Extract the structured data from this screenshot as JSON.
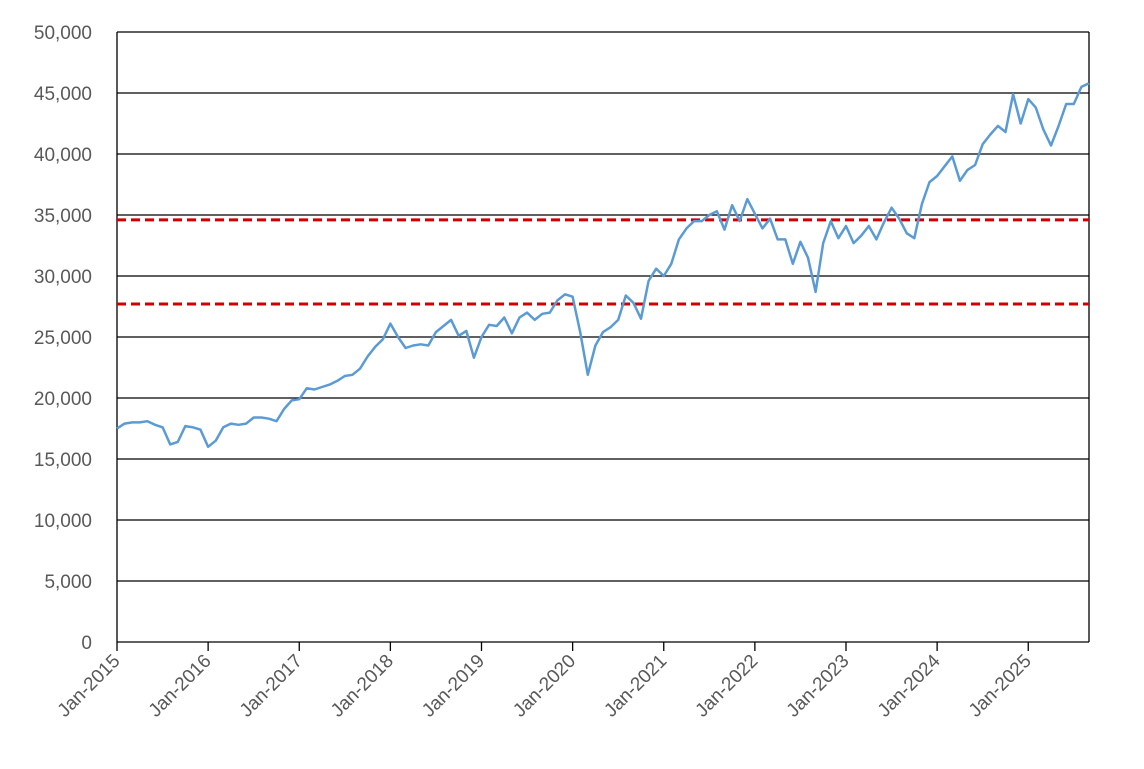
{
  "chart_data": {
    "type": "line",
    "title": "",
    "xlabel": "",
    "ylabel": "",
    "ylim": [
      0,
      50000
    ],
    "xlim": [
      "2015-01",
      "2025-09"
    ],
    "y_ticks": [
      "0",
      "5,000",
      "10,000",
      "15,000",
      "20,000",
      "25,000",
      "30,000",
      "35,000",
      "40,000",
      "45,000",
      "50,000"
    ],
    "x_ticks": [
      "Jan-2015",
      "Jan-2016",
      "Jan-2017",
      "Jan-2018",
      "Jan-2019",
      "Jan-2020",
      "Jan-2021",
      "Jan-2022",
      "Jan-2023",
      "Jan-2024",
      "Jan-2025"
    ],
    "grid": "horizontal",
    "legend": "none",
    "colors": {
      "series": "#5B9BD5",
      "reference": "#D00000",
      "grid": "#000000"
    },
    "series": [
      {
        "x": [
          "2015-01",
          "2015-02",
          "2015-03",
          "2015-04",
          "2015-05",
          "2015-06",
          "2015-07",
          "2015-08",
          "2015-09",
          "2015-10",
          "2015-11",
          "2015-12",
          "2016-01",
          "2016-02",
          "2016-03",
          "2016-04",
          "2016-05",
          "2016-06",
          "2016-07",
          "2016-08",
          "2016-09",
          "2016-10",
          "2016-11",
          "2016-12",
          "2017-01",
          "2017-02",
          "2017-03",
          "2017-04",
          "2017-05",
          "2017-06",
          "2017-07",
          "2017-08",
          "2017-09",
          "2017-10",
          "2017-11",
          "2017-12",
          "2018-01",
          "2018-02",
          "2018-03",
          "2018-04",
          "2018-05",
          "2018-06",
          "2018-07",
          "2018-08",
          "2018-09",
          "2018-10",
          "2018-11",
          "2018-12",
          "2019-01",
          "2019-02",
          "2019-03",
          "2019-04",
          "2019-05",
          "2019-06",
          "2019-07",
          "2019-08",
          "2019-09",
          "2019-10",
          "2019-11",
          "2019-12",
          "2020-01",
          "2020-02",
          "2020-03",
          "2020-04",
          "2020-05",
          "2020-06",
          "2020-07",
          "2020-08",
          "2020-09",
          "2020-10",
          "2020-11",
          "2020-12",
          "2021-01",
          "2021-02",
          "2021-03",
          "2021-04",
          "2021-05",
          "2021-06",
          "2021-07",
          "2021-08",
          "2021-09",
          "2021-10",
          "2021-11",
          "2021-12",
          "2022-01",
          "2022-02",
          "2022-03",
          "2022-04",
          "2022-05",
          "2022-06",
          "2022-07",
          "2022-08",
          "2022-09",
          "2022-10",
          "2022-11",
          "2022-12",
          "2023-01",
          "2023-02",
          "2023-03",
          "2023-04",
          "2023-05",
          "2023-06",
          "2023-07",
          "2023-08",
          "2023-09",
          "2023-10",
          "2023-11",
          "2023-12",
          "2024-01",
          "2024-02",
          "2024-03",
          "2024-04",
          "2024-05",
          "2024-06",
          "2024-07",
          "2024-08",
          "2024-09",
          "2024-10",
          "2024-11",
          "2024-12",
          "2025-01",
          "2025-02",
          "2025-03",
          "2025-04",
          "2025-05",
          "2025-06",
          "2025-07",
          "2025-08",
          "2025-09"
        ],
        "values": [
          17500,
          17900,
          18000,
          18000,
          18100,
          17800,
          17600,
          16200,
          16400,
          17700,
          17600,
          17400,
          16000,
          16500,
          17600,
          17900,
          17800,
          17900,
          18400,
          18400,
          18300,
          18100,
          19100,
          19800,
          19900,
          20800,
          20700,
          20900,
          21100,
          21400,
          21800,
          21900,
          22400,
          23400,
          24200,
          24800,
          26100,
          25000,
          24100,
          24300,
          24400,
          24300,
          25400,
          25900,
          26400,
          25100,
          25500,
          23300,
          25000,
          26000,
          25900,
          26600,
          25300,
          26600,
          27000,
          26400,
          26900,
          27000,
          28000,
          28500,
          28300,
          25400,
          21900,
          24300,
          25400,
          25800,
          26400,
          28400,
          27800,
          26500,
          29600,
          30600,
          30000,
          31000,
          33000,
          33900,
          34500,
          34500,
          35000,
          35300,
          33800,
          35800,
          34500,
          36300,
          35100,
          33900,
          34700,
          33000,
          33000,
          31000,
          32800,
          31500,
          28700,
          32700,
          34500,
          33100,
          34100,
          32700,
          33300,
          34100,
          33000,
          34400,
          35600,
          34700,
          33500,
          33100,
          35900,
          37700,
          38200,
          39000,
          39800,
          37800,
          38700,
          39100,
          40800,
          41600,
          42300,
          41800,
          44900,
          42500,
          44500,
          43800,
          42000,
          40700,
          42300,
          44100,
          44100,
          45500,
          45800
        ]
      }
    ],
    "reference_lines": [
      34600,
      27700
    ]
  }
}
